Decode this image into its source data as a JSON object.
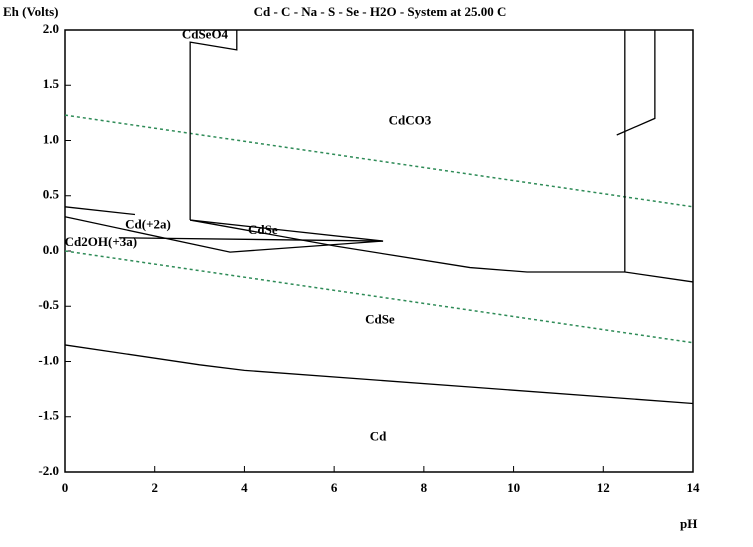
{
  "chart_data": {
    "type": "line",
    "title": "Cd - C - Na - S - Se - H2O - System at 25.00 C",
    "y_label": "Eh (Volts)",
    "x_label": "pH",
    "xlim": [
      0,
      14
    ],
    "xticks": [
      0,
      2,
      4,
      6,
      8,
      10,
      12,
      14
    ],
    "ylim": [
      -2,
      2
    ],
    "yticks": [
      {
        "value": 2,
        "label": "2.0"
      },
      {
        "value": 1.5,
        "label": "1.5"
      },
      {
        "value": 1,
        "label": "1.0"
      },
      {
        "value": 0.5,
        "label": "0.5"
      },
      {
        "value": 0,
        "label": "0.0"
      },
      {
        "value": -0.5,
        "label": "-0.5"
      },
      {
        "value": -1,
        "label": "-1.0"
      },
      {
        "value": -1.5,
        "label": "-1.5"
      },
      {
        "value": -2,
        "label": "-2.0"
      }
    ],
    "series": [
      {
        "color": "#2e8b57",
        "dashed": true,
        "x": [
          0,
          14
        ],
        "values": [
          1.23,
          0.4
        ]
      },
      {
        "color": "#2e8b57",
        "dashed": true,
        "x": [
          0,
          14
        ],
        "values": [
          0.0,
          -0.83
        ]
      },
      {
        "color": "#000000",
        "x": [
          0,
          3,
          4,
          14
        ],
        "values": [
          -0.85,
          -1.03,
          -1.08,
          -1.38
        ]
      },
      {
        "color": "#000000",
        "x": [
          2.79,
          6.02,
          9.03,
          10.3,
          12.48,
          14
        ],
        "values": [
          0.28,
          0.045,
          -0.15,
          -0.19,
          -0.19,
          -0.28
        ]
      },
      {
        "color": "#000000",
        "x": [
          0,
          1.56
        ],
        "values": [
          0.4,
          0.33
        ]
      },
      {
        "color": "#000000",
        "x": [
          2.79,
          2.79,
          3.83,
          3.83
        ],
        "values": [
          0.28,
          1.89,
          1.82,
          2.0
        ]
      },
      {
        "color": "#000000",
        "x": [
          12.48,
          12.48
        ],
        "values": [
          -0.19,
          2.0
        ]
      },
      {
        "color": "#000000",
        "x": [
          13.15,
          13.15,
          12.3
        ],
        "values": [
          2.0,
          1.2,
          1.05
        ]
      },
      {
        "color": "#000000",
        "x": [
          0,
          3.68,
          7.09,
          2.79
        ],
        "values": [
          0.31,
          -0.01,
          0.09,
          0.28
        ]
      },
      {
        "color": "#000000",
        "x": [
          1.2,
          7.09
        ],
        "values": [
          0.12,
          0.09
        ]
      }
    ],
    "annotations": [
      {
        "text": "CdSeO4",
        "x": 3.12,
        "y": 1.95
      },
      {
        "text": "CdCO3",
        "x": 7.69,
        "y": 1.17
      },
      {
        "text": "Cd(+2a)",
        "x": 1.85,
        "y": 0.23
      },
      {
        "text": "CdSe",
        "x": 4.41,
        "y": 0.18
      },
      {
        "text": "Cd2OH(+3a)",
        "x": 0.8,
        "y": 0.07
      },
      {
        "text": "CdSe",
        "x": 7.02,
        "y": -0.63
      },
      {
        "text": "Cd",
        "x": 6.98,
        "y": -1.69
      }
    ]
  }
}
